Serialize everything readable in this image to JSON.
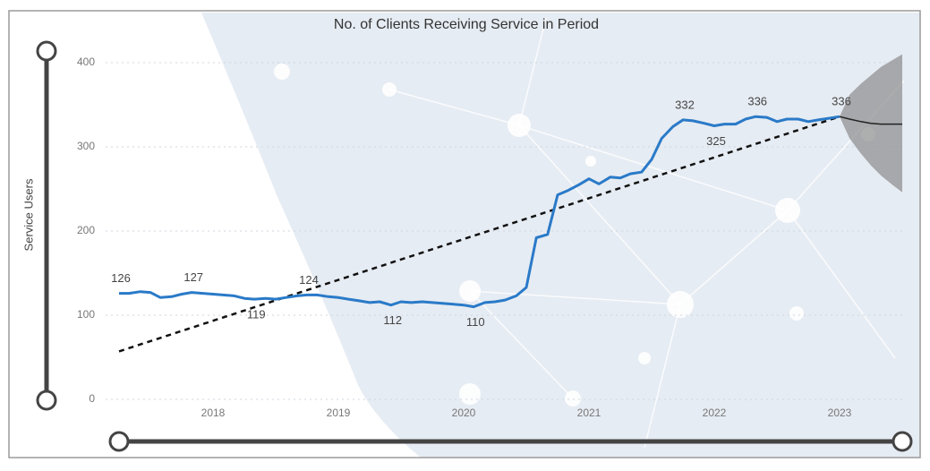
{
  "chart_data": {
    "type": "line",
    "title": "No. of Clients Receiving Service in Period",
    "y_label": "Service Users",
    "xlim": [
      2017.25,
      2023.5
    ],
    "xticks": [
      2018,
      2019,
      2020,
      2021,
      2022,
      2023
    ],
    "ylim": [
      0,
      400
    ],
    "yticks": [
      0,
      100,
      200,
      300,
      400
    ],
    "grid": true,
    "x": [
      2017.25,
      2017.33,
      2017.42,
      2017.5,
      2017.58,
      2017.67,
      2017.75,
      2017.83,
      2017.92,
      2018,
      2018.08,
      2018.17,
      2018.25,
      2018.33,
      2018.42,
      2018.5,
      2018.58,
      2018.67,
      2018.75,
      2018.83,
      2018.92,
      2019,
      2019.08,
      2019.17,
      2019.25,
      2019.33,
      2019.42,
      2019.5,
      2019.58,
      2019.67,
      2019.75,
      2019.83,
      2019.92,
      2020,
      2020.08,
      2020.17,
      2020.25,
      2020.33,
      2020.42,
      2020.5,
      2020.58,
      2020.67,
      2020.75,
      2020.83,
      2020.92,
      2021,
      2021.08,
      2021.17,
      2021.25,
      2021.33,
      2021.42,
      2021.5,
      2021.58,
      2021.67,
      2021.75,
      2021.83,
      2021.92,
      2022,
      2022.08,
      2022.17,
      2022.25,
      2022.33,
      2022.42,
      2022.5,
      2022.58,
      2022.67,
      2022.75,
      2022.83,
      2022.92,
      2023
    ],
    "series": [
      {
        "color": "#2a7ac8",
        "values": [
          126,
          126,
          128,
          127,
          121,
          122,
          125,
          127,
          126,
          125,
          124,
          123,
          120,
          119,
          120,
          119,
          121,
          123,
          124,
          124,
          122,
          121,
          119,
          117,
          115,
          116,
          112,
          116,
          115,
          116,
          115,
          114,
          113,
          112,
          110,
          115,
          116,
          118,
          123,
          133,
          192,
          196,
          243,
          248,
          255,
          262,
          256,
          264,
          263,
          268,
          270,
          285,
          310,
          324,
          332,
          331,
          328,
          325,
          327,
          327,
          333,
          336,
          335,
          330,
          333,
          333,
          330,
          332,
          334,
          336
        ],
        "value_labels": [
          "126",
          null,
          null,
          null,
          null,
          null,
          null,
          "127",
          null,
          null,
          null,
          null,
          null,
          "119",
          null,
          null,
          null,
          null,
          "124",
          null,
          null,
          null,
          null,
          null,
          null,
          null,
          "112",
          null,
          null,
          null,
          null,
          null,
          null,
          null,
          "110",
          null,
          null,
          null,
          null,
          null,
          null,
          null,
          null,
          null,
          null,
          null,
          null,
          null,
          null,
          null,
          null,
          null,
          null,
          null,
          "332",
          null,
          null,
          "325",
          null,
          null,
          null,
          "336",
          null,
          null,
          null,
          null,
          null,
          null,
          null,
          "336"
        ]
      }
    ],
    "trend": {
      "color": "#111111",
      "x": [
        2017.25,
        2023
      ],
      "values": [
        57,
        336
      ]
    },
    "forecast": {
      "color": "#222222",
      "band_color": "#8c8c8c",
      "x": [
        2023,
        2023.08,
        2023.17,
        2023.25,
        2023.33,
        2023.42,
        2023.5
      ],
      "values": [
        336,
        333,
        330,
        328,
        327,
        327,
        327
      ],
      "lower": [
        336,
        310,
        292,
        278,
        266,
        255,
        246
      ],
      "upper": [
        336,
        362,
        375,
        385,
        395,
        403,
        410
      ]
    }
  }
}
